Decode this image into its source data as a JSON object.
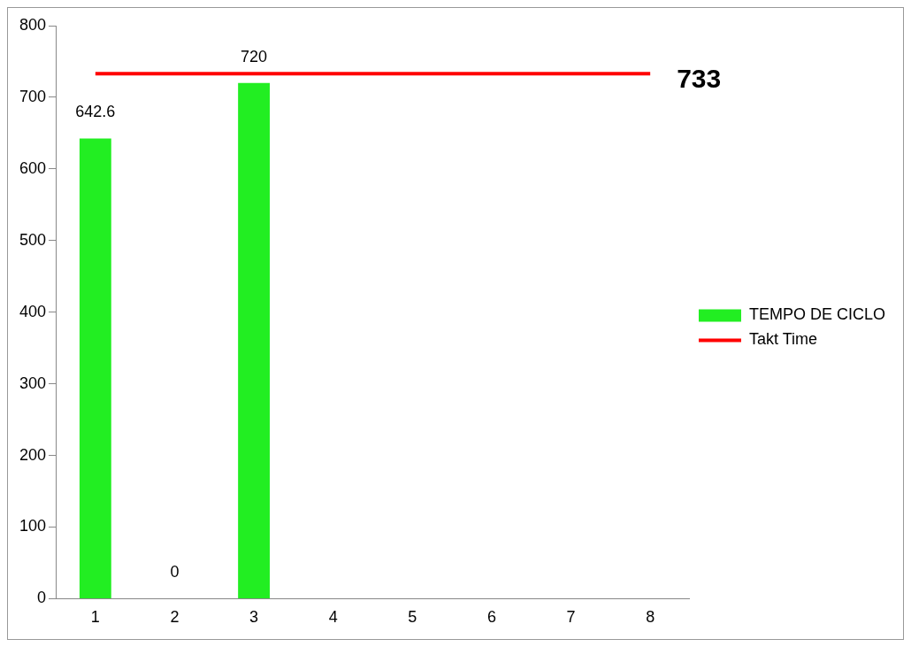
{
  "chart_data": {
    "type": "bar",
    "categories": [
      "1",
      "2",
      "3",
      "4",
      "5",
      "6",
      "7",
      "8"
    ],
    "series": [
      {
        "name": "TEMPO DE CICLO",
        "color": "#22ee22",
        "values": [
          642.6,
          0,
          720,
          null,
          null,
          null,
          null,
          null
        ],
        "value_labels": [
          "642.6",
          "0",
          "720",
          null,
          null,
          null,
          null,
          null
        ]
      },
      {
        "name": "Takt Time",
        "type": "line",
        "color": "#ff0000",
        "marker": "none",
        "values": [
          733,
          733,
          733,
          733,
          733,
          733,
          733,
          733
        ]
      }
    ],
    "annotations": [
      {
        "text": "733",
        "x": "8",
        "y": 733
      }
    ],
    "ylim": [
      0,
      800
    ],
    "yticks": [
      0,
      100,
      200,
      300,
      400,
      500,
      600,
      700,
      800
    ],
    "grid": false,
    "legend": "right"
  }
}
